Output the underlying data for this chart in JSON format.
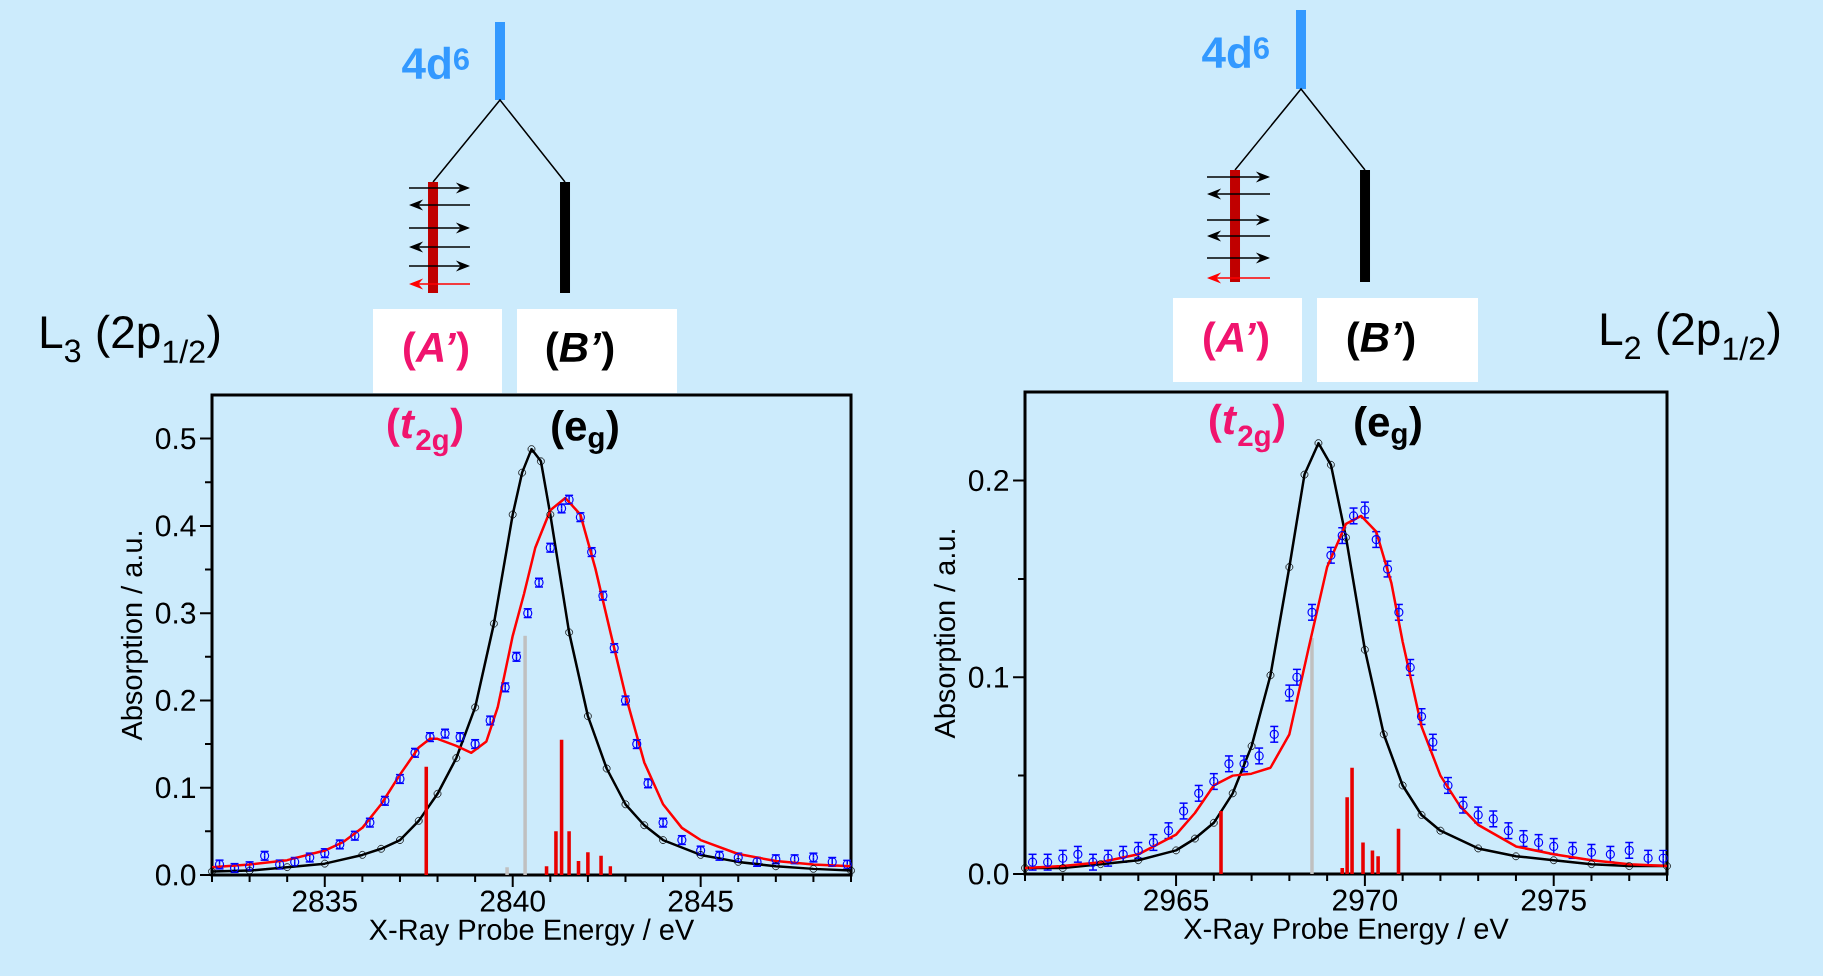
{
  "chart_data": [
    {
      "type": "line",
      "xlabel": "X-Ray Probe Energy / eV",
      "ylabel": "Absorption / a.u.",
      "annotations": [
        "4d$^{6}$",
        "(*A’*)",
        "(*B’*)",
        "(*t*$_{2g}$)",
        "(e$_{g}$)",
        "L$_{3}$ (2p$_{1/2}$)"
      ],
      "xlim": [
        2832,
        2849
      ],
      "ylim": [
        0,
        0.55
      ],
      "xticks": [
        {
          "value": 2832,
          "label": null
        },
        {
          "value": 2833,
          "label": null
        },
        {
          "value": 2834,
          "label": null
        },
        2835,
        {
          "value": 2836,
          "label": null
        },
        {
          "value": 2837,
          "label": null
        },
        {
          "value": 2838,
          "label": null
        },
        {
          "value": 2839,
          "label": null
        },
        2840,
        {
          "value": 2841,
          "label": null
        },
        {
          "value": 2842,
          "label": null
        },
        {
          "value": 2843,
          "label": null
        },
        {
          "value": 2844,
          "label": null
        },
        2845,
        {
          "value": 2846,
          "label": null
        },
        {
          "value": 2847,
          "label": null
        },
        {
          "value": 2848,
          "label": null
        },
        {
          "value": 2849,
          "label": null
        }
      ],
      "yticks": [
        {
          "value": 0,
          "label": "0.0"
        },
        {
          "value": 0.05,
          "label": null
        },
        0.1,
        {
          "value": 0.15,
          "label": null
        },
        0.2,
        {
          "value": 0.25,
          "label": null
        },
        0.3,
        {
          "value": 0.35,
          "label": null
        },
        0.4,
        {
          "value": 0.45,
          "label": null
        },
        0.5
      ],
      "series": [
        {
          "type": "scatter",
          "color": "#0000ff",
          "marker": "circle",
          "x": [
            2832.2,
            2832.6,
            2833,
            2833.4,
            2833.8,
            2834.2,
            2834.6,
            2835,
            2835.4,
            2835.8,
            2836.2,
            2836.6,
            2837,
            2837.4,
            2837.8,
            2838.2,
            2838.6,
            2839,
            2839.4,
            2839.8,
            2840.1,
            2840.4,
            2840.7,
            2841,
            2841.3,
            2841.5,
            2841.8,
            2842.1,
            2842.4,
            2842.7,
            2843,
            2843.3,
            2843.6,
            2844,
            2844.5,
            2845,
            2845.5,
            2846,
            2846.5,
            2847,
            2847.5,
            2848,
            2848.5,
            2848.9
          ],
          "values": [
            0.012,
            0.008,
            0.01,
            0.022,
            0.012,
            0.015,
            0.02,
            0.025,
            0.035,
            0.045,
            0.06,
            0.085,
            0.11,
            0.14,
            0.158,
            0.162,
            0.158,
            0.15,
            0.177,
            0.215,
            0.25,
            0.3,
            0.335,
            0.375,
            0.42,
            0.43,
            0.41,
            0.37,
            0.32,
            0.26,
            0.2,
            0.15,
            0.105,
            0.06,
            0.04,
            0.028,
            0.022,
            0.02,
            0.015,
            0.018,
            0.018,
            0.02,
            0.015,
            0.012
          ],
          "errors": [
            0.005,
            0.005,
            0.005,
            0.005,
            0.005,
            0.005,
            0.005,
            0.005,
            0.005,
            0.005,
            0.005,
            0.005,
            0.005,
            0.005,
            0.005,
            0.005,
            0.005,
            0.005,
            0.005,
            0.005,
            0.005,
            0.005,
            0.005,
            0.005,
            0.005,
            0.005,
            0.005,
            0.005,
            0.005,
            0.005,
            0.005,
            0.005,
            0.005,
            0.005,
            0.005,
            0.005,
            0.005,
            0.005,
            0.005,
            0.005,
            0.005,
            0.005,
            0.005,
            0.005
          ]
        },
        {
          "color": "#000000",
          "marker": "circle",
          "x": [
            2832,
            2833,
            2834,
            2835,
            2836,
            2836.5,
            2837,
            2837.5,
            2838,
            2838.5,
            2839,
            2839.5,
            2840,
            2840.25,
            2840.5,
            2840.75,
            2841,
            2841.5,
            2842,
            2842.5,
            2843,
            2843.5,
            2844,
            2845,
            2846,
            2847,
            2848,
            2849
          ],
          "values": [
            0.004,
            0.005,
            0.009,
            0.013,
            0.023,
            0.03,
            0.04,
            0.062,
            0.093,
            0.134,
            0.192,
            0.288,
            0.413,
            0.461,
            0.488,
            0.474,
            0.413,
            0.278,
            0.182,
            0.122,
            0.081,
            0.057,
            0.04,
            0.023,
            0.015,
            0.01,
            0.007,
            0.005
          ]
        },
        {
          "type": "bar",
          "color": "#c0c0c0",
          "x": [
            2839.85,
            2840.33
          ],
          "values": [
            0.009,
            0.274
          ]
        },
        {
          "type": "bar",
          "color": "#e80000",
          "x": [
            2837.7,
            2840.9,
            2841.15,
            2841.3,
            2841.5,
            2841.75,
            2842.0,
            2842.35,
            2842.6
          ],
          "values": [
            0.124,
            0.01,
            0.05,
            0.155,
            0.05,
            0.016,
            0.026,
            0.022,
            0.01
          ]
        },
        {
          "color": "#ff0000",
          "x": [
            2832,
            2833,
            2834,
            2835,
            2835.5,
            2836,
            2836.5,
            2837,
            2837.5,
            2837.8,
            2838,
            2838.5,
            2838.9,
            2839.3,
            2839.6,
            2840,
            2840.3,
            2840.6,
            2841,
            2841.4,
            2841.8,
            2842.2,
            2842.6,
            2843,
            2843.5,
            2844,
            2844.5,
            2845,
            2846,
            2847,
            2848,
            2849
          ],
          "values": [
            0.009,
            0.012,
            0.017,
            0.028,
            0.038,
            0.054,
            0.081,
            0.115,
            0.146,
            0.156,
            0.156,
            0.148,
            0.14,
            0.153,
            0.192,
            0.274,
            0.322,
            0.375,
            0.418,
            0.432,
            0.413,
            0.351,
            0.278,
            0.206,
            0.129,
            0.081,
            0.054,
            0.04,
            0.024,
            0.016,
            0.012,
            0.01
          ]
        }
      ]
    },
    {
      "type": "line",
      "xlabel": "X-Ray Probe Energy / eV",
      "ylabel": "Absorption / a.u.",
      "annotations": [
        "4d$^{6}$",
        "(*A’*)",
        "(*B’*)",
        "(*t*$_{2g}$)",
        "(e$_{g}$)",
        "L$_{2}$ (2p$_{1/2}$)"
      ],
      "xlim": [
        2961,
        2978
      ],
      "ylim": [
        0,
        0.245
      ],
      "xticks": [
        {
          "value": 2961,
          "label": null
        },
        {
          "value": 2962,
          "label": null
        },
        {
          "value": 2963,
          "label": null
        },
        {
          "value": 2964,
          "label": null
        },
        2965,
        {
          "value": 2966,
          "label": null
        },
        {
          "value": 2967,
          "label": null
        },
        {
          "value": 2968,
          "label": null
        },
        {
          "value": 2969,
          "label": null
        },
        2970,
        {
          "value": 2971,
          "label": null
        },
        {
          "value": 2972,
          "label": null
        },
        {
          "value": 2973,
          "label": null
        },
        {
          "value": 2974,
          "label": null
        },
        2975,
        {
          "value": 2976,
          "label": null
        },
        {
          "value": 2977,
          "label": null
        },
        {
          "value": 2978,
          "label": null
        }
      ],
      "yticks": [
        {
          "value": 0,
          "label": "0.0"
        },
        {
          "value": 0.05,
          "label": null
        },
        0.1,
        {
          "value": 0.15,
          "label": null
        },
        0.2
      ],
      "series": [
        {
          "type": "scatter",
          "color": "#0000ff",
          "marker": "circle",
          "x": [
            2961.2,
            2961.6,
            2962,
            2962.4,
            2962.8,
            2963.2,
            2963.6,
            2964,
            2964.4,
            2964.8,
            2965.2,
            2965.6,
            2966,
            2966.4,
            2966.8,
            2967.2,
            2967.6,
            2968,
            2968.2,
            2968.6,
            2969.1,
            2969.4,
            2969.7,
            2970,
            2970.3,
            2970.6,
            2970.9,
            2971.2,
            2971.5,
            2971.8,
            2972.2,
            2972.6,
            2973,
            2973.4,
            2973.8,
            2974.2,
            2974.6,
            2975,
            2975.5,
            2976,
            2976.5,
            2977,
            2977.5,
            2977.9
          ],
          "values": [
            0.006,
            0.006,
            0.008,
            0.01,
            0.006,
            0.008,
            0.01,
            0.012,
            0.016,
            0.022,
            0.032,
            0.041,
            0.047,
            0.056,
            0.056,
            0.06,
            0.071,
            0.092,
            0.1,
            0.133,
            0.162,
            0.172,
            0.182,
            0.185,
            0.17,
            0.155,
            0.133,
            0.105,
            0.08,
            0.067,
            0.045,
            0.035,
            0.03,
            0.028,
            0.022,
            0.018,
            0.016,
            0.014,
            0.012,
            0.011,
            0.01,
            0.012,
            0.008,
            0.008
          ],
          "errors": [
            0.004,
            0.004,
            0.004,
            0.004,
            0.004,
            0.004,
            0.004,
            0.004,
            0.004,
            0.004,
            0.004,
            0.004,
            0.004,
            0.004,
            0.004,
            0.004,
            0.004,
            0.004,
            0.004,
            0.004,
            0.004,
            0.004,
            0.004,
            0.004,
            0.004,
            0.004,
            0.004,
            0.004,
            0.004,
            0.004,
            0.004,
            0.004,
            0.004,
            0.004,
            0.004,
            0.004,
            0.004,
            0.004,
            0.004,
            0.004,
            0.004,
            0.004,
            0.004,
            0.004
          ]
        },
        {
          "color": "#000000",
          "marker": "circle",
          "x": [
            2961,
            2962,
            2963,
            2964,
            2965,
            2965.5,
            2966,
            2966.5,
            2967,
            2967.5,
            2968,
            2968.4,
            2968.77,
            2969.1,
            2969.5,
            2970,
            2970.5,
            2971,
            2971.5,
            2972,
            2973,
            2974,
            2975,
            2976,
            2977,
            2978
          ],
          "values": [
            0.003,
            0.003,
            0.005,
            0.007,
            0.012,
            0.018,
            0.026,
            0.041,
            0.065,
            0.101,
            0.156,
            0.203,
            0.219,
            0.208,
            0.171,
            0.114,
            0.071,
            0.045,
            0.03,
            0.022,
            0.013,
            0.009,
            0.007,
            0.005,
            0.004,
            0.004
          ]
        },
        {
          "type": "bar",
          "color": "#c0c0c0",
          "x": [
            2968.6
          ],
          "values": [
            0.12
          ]
        },
        {
          "type": "bar",
          "color": "#e80000",
          "x": [
            2966.19,
            2969.4,
            2969.53,
            2969.66,
            2969.95,
            2970.2,
            2970.35,
            2970.89
          ],
          "values": [
            0.032,
            0.003,
            0.039,
            0.054,
            0.016,
            0.012,
            0.009,
            0.023
          ]
        },
        {
          "color": "#ff0000",
          "x": [
            2961,
            2962,
            2963,
            2964,
            2965,
            2965.5,
            2966,
            2966.5,
            2967,
            2967.5,
            2968,
            2968.5,
            2969,
            2969.5,
            2969.9,
            2970.3,
            2970.7,
            2971,
            2971.5,
            2972,
            2972.5,
            2973,
            2974,
            2975,
            2976,
            2977,
            2978
          ],
          "values": [
            0.003,
            0.004,
            0.006,
            0.01,
            0.02,
            0.031,
            0.045,
            0.05,
            0.051,
            0.054,
            0.071,
            0.114,
            0.156,
            0.178,
            0.182,
            0.174,
            0.148,
            0.118,
            0.075,
            0.05,
            0.035,
            0.025,
            0.014,
            0.01,
            0.007,
            0.005,
            0.004
          ]
        }
      ]
    }
  ]
}
